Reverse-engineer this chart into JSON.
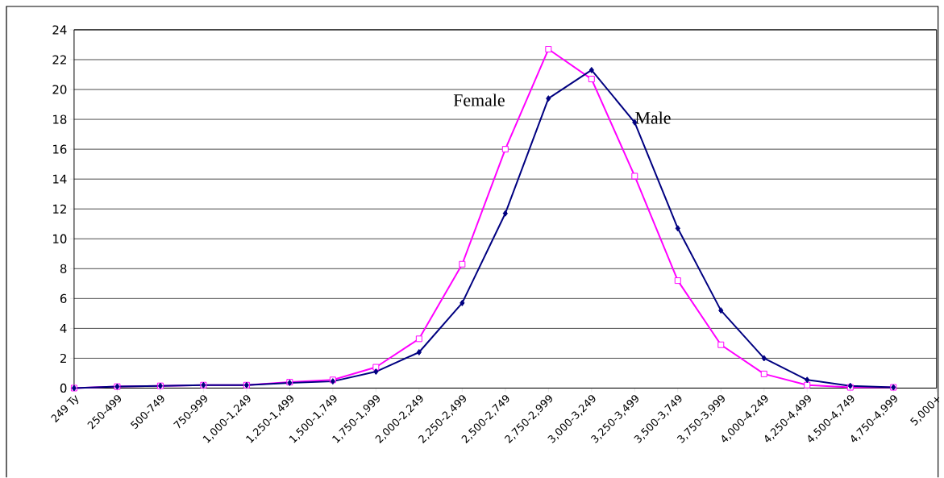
{
  "chart_data": {
    "type": "line",
    "categories": [
      "249 Ty",
      "250-499",
      "500-749",
      "750-999",
      "1,000-1,249",
      "1,250-1,499",
      "1,500-1,749",
      "1,750-1,999",
      "2,000-2,249",
      "2,250-2,499",
      "2,500-2,749",
      "2,750-2,999",
      "3,000-3,249",
      "3,250-3,499",
      "3,500-3,749",
      "3,750-3,999",
      "4,000-4,249",
      "4,250-4,499",
      "4,500-4,749",
      "4,750-4,999",
      "5,000+"
    ],
    "series": [
      {
        "name": "Female",
        "color": "#ff00ff",
        "marker": "square",
        "values": [
          0,
          0.1,
          0.15,
          0.2,
          0.2,
          0.4,
          0.55,
          1.4,
          3.3,
          8.3,
          16.0,
          22.7,
          20.7,
          14.2,
          7.2,
          2.9,
          0.95,
          0.2,
          0.05,
          0.05,
          null
        ]
      },
      {
        "name": "Male",
        "color": "#000080",
        "marker": "diamond",
        "values": [
          0,
          0.1,
          0.15,
          0.2,
          0.2,
          0.35,
          0.45,
          1.1,
          2.4,
          5.7,
          11.7,
          19.4,
          21.3,
          17.8,
          10.7,
          5.2,
          2.0,
          0.55,
          0.15,
          0.05,
          null
        ]
      }
    ],
    "ylim": [
      0,
      24
    ],
    "yticks": [
      0,
      2,
      4,
      6,
      8,
      10,
      12,
      14,
      16,
      18,
      20,
      22,
      24
    ],
    "grid": "y",
    "legend": false
  }
}
